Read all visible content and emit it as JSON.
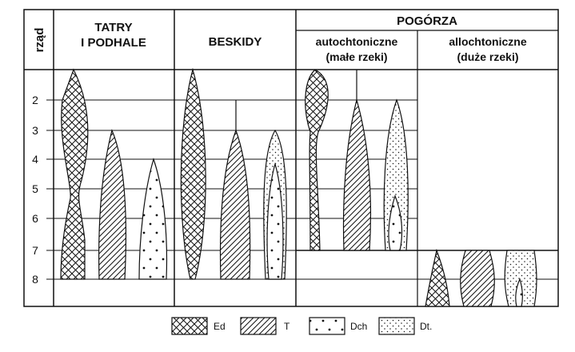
{
  "axis": {
    "label": "rząd",
    "ticks": [
      "2",
      "3",
      "4",
      "5",
      "6",
      "7",
      "8"
    ]
  },
  "headers": {
    "tatry_line1": "TATRY",
    "tatry_line2": "I PODHALE",
    "beskidy": "BESKIDY",
    "pogorza": "POGÓRZA",
    "auto_line1": "autochtoniczne",
    "auto_line2": "(małe rzeki)",
    "allo_line1": "allochtoniczne",
    "allo_line2": "(duże rzeki)"
  },
  "legend": [
    {
      "label": "Ed",
      "pattern": "crosshatch"
    },
    {
      "label": "T",
      "pattern": "diagonal"
    },
    {
      "label": "Dch",
      "pattern": "dots-sparse"
    },
    {
      "label": "Dt.",
      "pattern": "dots-dense"
    }
  ]
}
